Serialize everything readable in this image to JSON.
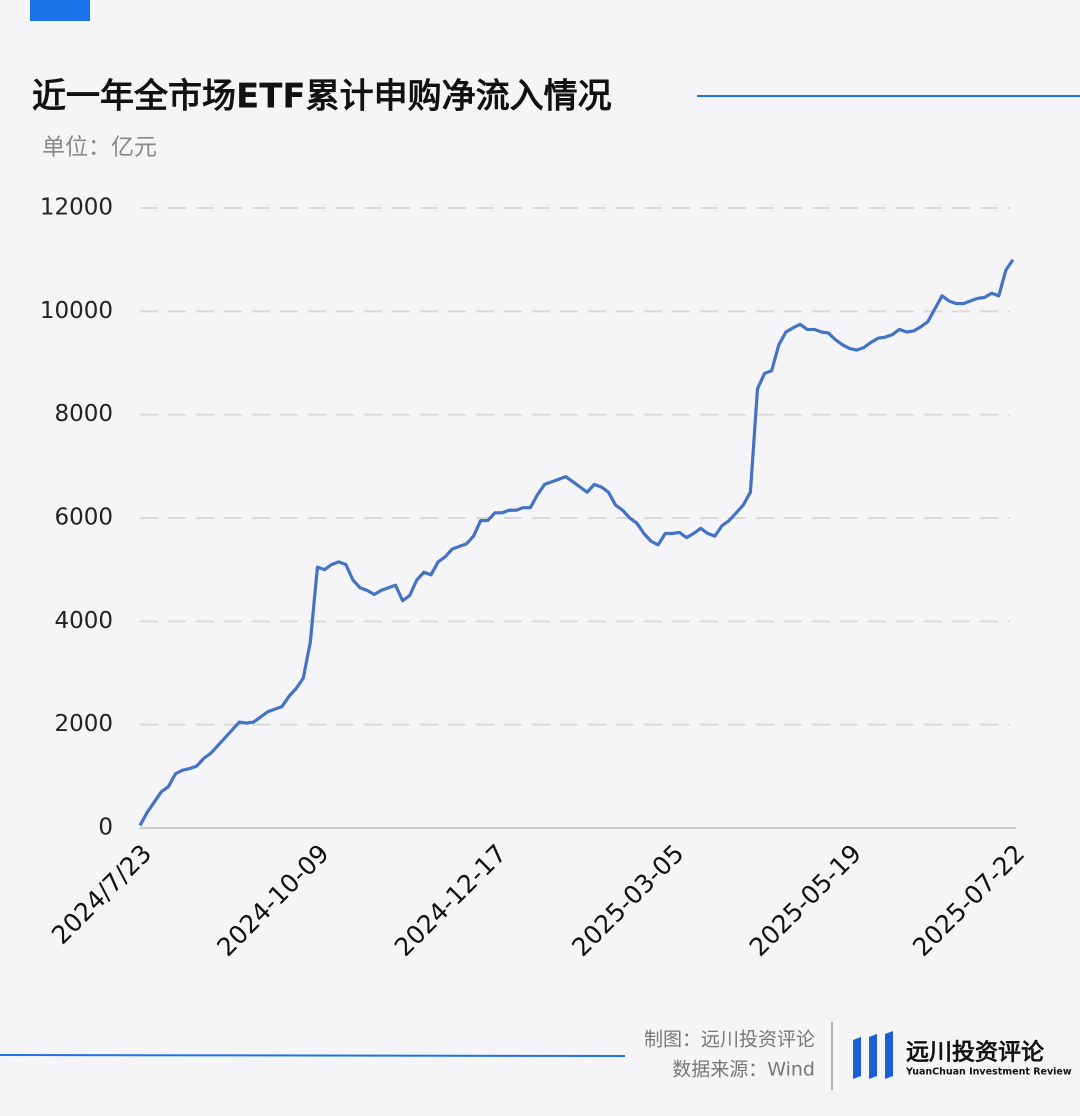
{
  "chart_data": {
    "type": "line",
    "title": "近一年全市场ETF累计申购净流入情况",
    "subtitle": "单位：亿元",
    "categories": [
      "2024/7/23",
      null,
      null,
      null,
      null,
      null,
      null,
      null,
      null,
      null,
      null,
      null,
      null,
      null,
      null,
      null,
      null,
      null,
      null,
      null,
      null,
      null,
      null,
      null,
      null,
      "2024-10-09",
      null,
      null,
      null,
      null,
      null,
      null,
      null,
      null,
      null,
      null,
      null,
      null,
      null,
      null,
      null,
      null,
      null,
      null,
      null,
      null,
      null,
      null,
      null,
      null,
      "2024-12-17",
      null,
      null,
      null,
      null,
      null,
      null,
      null,
      null,
      null,
      null,
      null,
      null,
      null,
      null,
      null,
      null,
      null,
      null,
      null,
      null,
      null,
      null,
      null,
      null,
      "2025-03-05",
      null,
      null,
      null,
      null,
      null,
      null,
      null,
      null,
      null,
      null,
      null,
      null,
      null,
      null,
      null,
      null,
      null,
      null,
      null,
      null,
      null,
      null,
      null,
      null,
      "2025-05-19",
      null,
      null,
      null,
      null,
      null,
      null,
      null,
      null,
      null,
      null,
      null,
      null,
      null,
      null,
      null,
      null,
      null,
      null,
      null,
      null,
      null,
      null,
      "2025-07-22"
    ],
    "series": [
      {
        "color": "#4472c4",
        "values": [
          50,
          300,
          500,
          700,
          800,
          1050,
          1120,
          1150,
          1200,
          1350,
          1450,
          1600,
          1750,
          1900,
          2050,
          2030,
          2050,
          2150,
          2250,
          2300,
          2350,
          2550,
          2700,
          2900,
          3600,
          5050,
          5000,
          5100,
          5150,
          5100,
          4800,
          4650,
          4600,
          4520,
          4600,
          4650,
          4700,
          4400,
          4500,
          4800,
          4950,
          4900,
          5150,
          5250,
          5400,
          5450,
          5500,
          5650,
          5950,
          5950,
          6100,
          6100,
          6150,
          6150,
          6200,
          6200,
          6450,
          6650,
          6700,
          6750,
          6800,
          6700,
          6600,
          6500,
          6650,
          6600,
          6500,
          6250,
          6150,
          6000,
          5900,
          5700,
          5550,
          5480,
          5700,
          5700,
          5720,
          5620,
          5700,
          5800,
          5700,
          5650,
          5850,
          5950,
          6100,
          6250,
          6500,
          8500,
          8800,
          8850,
          9350,
          9600,
          9680,
          9750,
          9650,
          9650,
          9600,
          9580,
          9450,
          9350,
          9280,
          9250,
          9300,
          9400,
          9480,
          9500,
          9550,
          9650,
          9600,
          9620,
          9700,
          9800,
          10050,
          10300,
          10200,
          10150,
          10150,
          10200,
          10250,
          10270,
          10350,
          10300,
          10800,
          11000
        ]
      }
    ],
    "ylim": [
      0,
      12000
    ],
    "yticks": [
      0,
      2000,
      4000,
      6000,
      8000,
      10000,
      12000
    ],
    "grid": true
  },
  "footer": {
    "maker": "制图：远川投资评论",
    "source": "数据来源：Wind"
  },
  "brand": {
    "name": "远川投资评论",
    "english": "YuanChuan Investment Review"
  }
}
